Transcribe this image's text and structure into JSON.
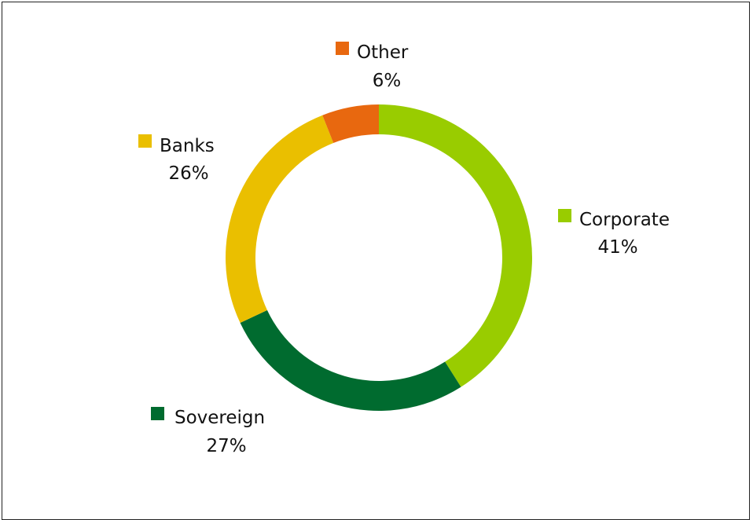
{
  "chart_data": {
    "type": "pie",
    "donut": true,
    "title": "",
    "slices": [
      {
        "label": "Corporate",
        "value": 41,
        "display": "41%",
        "color": "#99cc00",
        "legend_side": "right"
      },
      {
        "label": "Sovereign",
        "value": 27,
        "display": "27%",
        "color": "#006b2f",
        "legend_side": "bottom-left"
      },
      {
        "label": "Banks",
        "value": 26,
        "display": "26%",
        "color": "#eabf00",
        "legend_side": "left"
      },
      {
        "label": "Other",
        "value": 6,
        "display": "6%",
        "color": "#e8680f",
        "legend_side": "top"
      }
    ],
    "start": "top",
    "direction": "clockwise"
  }
}
